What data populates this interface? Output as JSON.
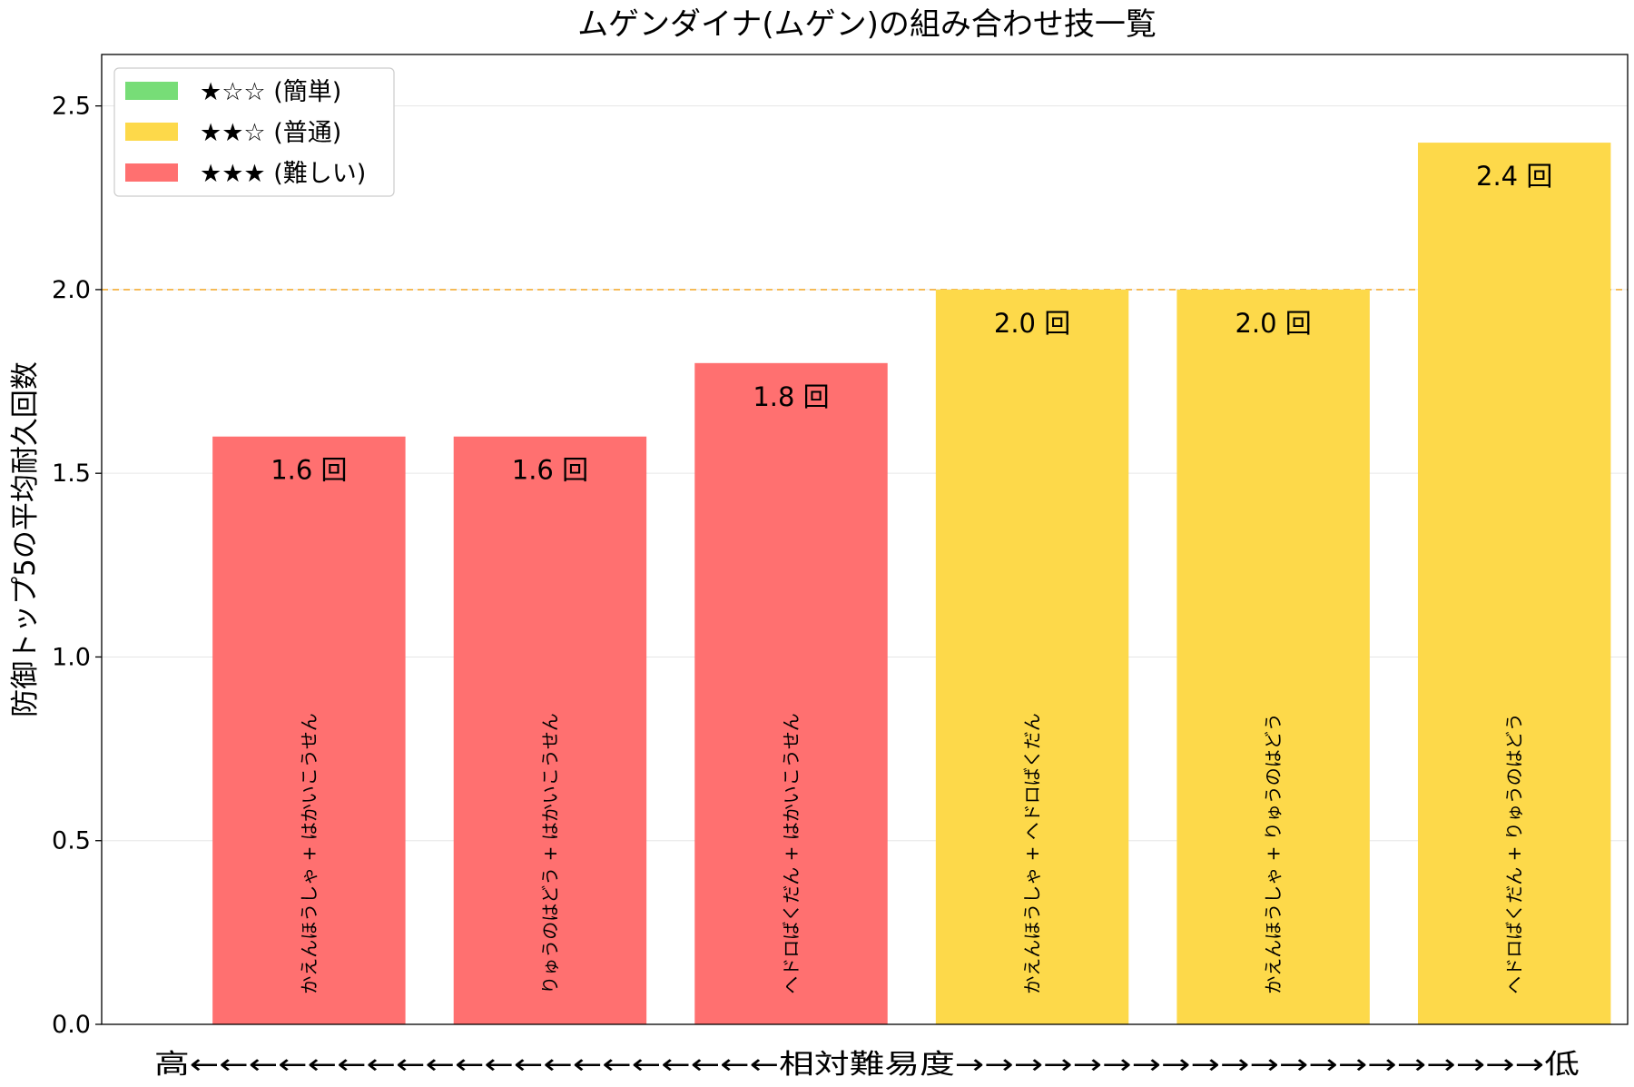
{
  "chart_data": {
    "type": "bar",
    "title": "ムゲンダイナ(ムゲン)の組み合わせ技一覧",
    "ylabel": "防御トップ5の平均耐久回数",
    "xlabel": "高←←←←←←←←←←←←←←←←←←←←相対難易度→→→→→→→→→→→→→→→→→→→→低",
    "ylim": [
      0,
      2.64
    ],
    "yticks": [
      "0.0",
      "0.5",
      "1.0",
      "1.5",
      "2.0",
      "2.5"
    ],
    "ytick_values": [
      0,
      0.5,
      1.0,
      1.5,
      2.0,
      2.5
    ],
    "reference_line": {
      "value": 2.0,
      "color": "#f5a623",
      "style": "dashed"
    },
    "grid": "horizontal",
    "legend_position": "top-left",
    "legend": [
      {
        "label": "★☆☆ (簡単)",
        "color": "#77dd77"
      },
      {
        "label": "★★☆ (普通)",
        "color": "#fdd94a"
      },
      {
        "label": "★★★ (難しい)",
        "color": "#ff7070"
      }
    ],
    "categories": [
      "かえんほうしゃ + はかいこうせん",
      "りゅうのはどう + はかいこうせん",
      "ヘドロばくだん + はかいこうせん",
      "かえんほうしゃ + ヘドロばくだん",
      "かえんほうしゃ + りゅうのはどう",
      "ヘドロばくだん + りゅうのはどう"
    ],
    "values": [
      1.6,
      1.6,
      1.8,
      2.0,
      2.0,
      2.4
    ],
    "value_labels": [
      "1.6 回",
      "1.6 回",
      "1.8 回",
      "2.0 回",
      "2.0 回",
      "2.4 回"
    ],
    "difficulty": [
      "★★★ (難しい)",
      "★★★ (難しい)",
      "★★★ (難しい)",
      "★★☆ (普通)",
      "★★☆ (普通)",
      "★★☆ (普通)"
    ],
    "bar_colors": [
      "#ff7070",
      "#ff7070",
      "#ff7070",
      "#fdd94a",
      "#fdd94a",
      "#fdd94a"
    ]
  }
}
